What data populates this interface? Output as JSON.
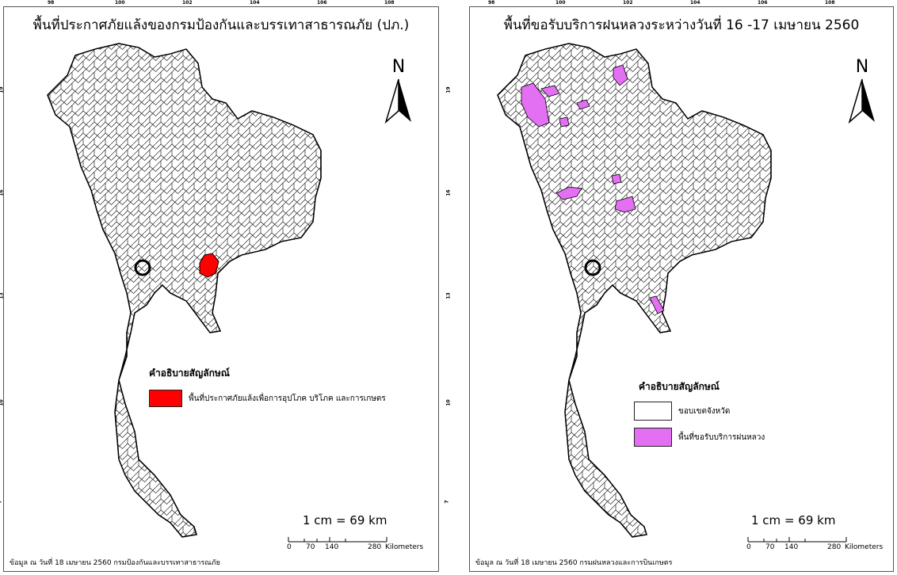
{
  "maps": [
    {
      "title": "พื้นที่ประกาศภัยแล้งของกรมป้องกันและบรรเทาสาธารณภัย (ปภ.)",
      "north_label": "N",
      "lon_ticks": [
        "98",
        "100",
        "102",
        "104",
        "106",
        "108"
      ],
      "lat_ticks": [
        "19",
        "16",
        "13",
        "10",
        "7"
      ],
      "legend_title": "คำอธิบายสัญลักษณ์",
      "legend_items": [
        {
          "label": "พื้นที่ประกาศภัยแล้งเพื่อการอุปโภค บริโภค และการเกษตร",
          "color": "#ff0000"
        }
      ],
      "scale_text": "1 cm = 69 km",
      "scale_labels": [
        "0",
        "70",
        "140",
        "280",
        "Kilometers"
      ],
      "footer": "ข้อมูล ณ วันที่ 18 เมษายน 2560 กรมป้องกันและบรรเทาสาธารณภัย",
      "highlight_color": "#ff0000"
    },
    {
      "title": "พื้นที่ขอรับบริการฝนหลวงระหว่างวันที่ 16 -17 เมษายน 2560",
      "north_label": "N",
      "lon_ticks": [
        "98",
        "100",
        "102",
        "104",
        "106",
        "108"
      ],
      "lat_ticks": [
        "19",
        "16",
        "13",
        "10",
        "7"
      ],
      "legend_title": "คำอธิบายสัญลักษณ์",
      "legend_items": [
        {
          "label": "ขอบเขตจังหวัด",
          "color": "#ffffff"
        },
        {
          "label": "พื้นที่ขอรับบริการฝนหลวง",
          "color": "#e36ff2"
        }
      ],
      "scale_text": "1 cm = 69 km",
      "scale_labels": [
        "0",
        "70",
        "140",
        "280",
        "Kilometers"
      ],
      "footer": "ข้อมูล ณ วันที่ 18 เมษายน 2560 กรมฝนหลวงและการบินเกษตร",
      "highlight_color": "#e36ff2"
    }
  ]
}
